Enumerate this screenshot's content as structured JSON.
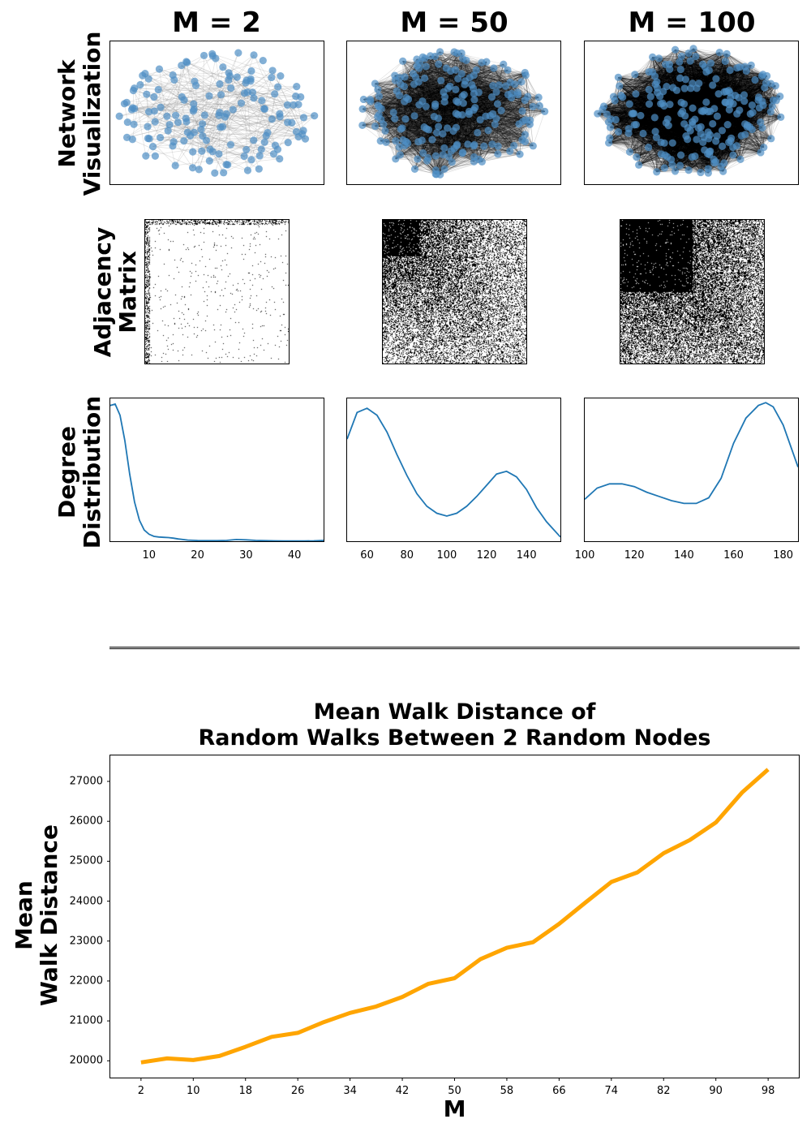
{
  "columns": {
    "titles": [
      "M = 2",
      "M = 50",
      "M = 100"
    ]
  },
  "rows": {
    "network": [
      "Network",
      "Visualization"
    ],
    "adjacency": [
      "Adjacency",
      "Matrix"
    ],
    "degree": [
      "Degree",
      "Distribution"
    ]
  },
  "colors": {
    "node": "#4f8fc4",
    "edge": "#888888",
    "curve": "#1f77b4",
    "walk_line": "#ffa500",
    "matrix_fill": "#000000"
  },
  "degree_panels": [
    {
      "ticks": [
        "10",
        "20",
        "30",
        "40"
      ],
      "xlim": [
        2,
        46
      ]
    },
    {
      "ticks": [
        "60",
        "80",
        "100",
        "120",
        "140"
      ],
      "xlim": [
        50,
        157
      ]
    },
    {
      "ticks": [
        "100",
        "120",
        "140",
        "160",
        "180"
      ],
      "xlim": [
        100,
        186
      ]
    }
  ],
  "chart_data": [
    {
      "type": "line",
      "title": "",
      "panel": "Degree Distribution, M = 2",
      "x": [
        2,
        3,
        4,
        5,
        6,
        7,
        8,
        9,
        10,
        11,
        12,
        13,
        14,
        15,
        16,
        18,
        20,
        22,
        24,
        26,
        28,
        30,
        32,
        34,
        36,
        38,
        40,
        42,
        44,
        46
      ],
      "y": [
        0.97,
        0.98,
        0.9,
        0.72,
        0.48,
        0.28,
        0.15,
        0.08,
        0.05,
        0.035,
        0.03,
        0.028,
        0.026,
        0.022,
        0.016,
        0.008,
        0.005,
        0.004,
        0.004,
        0.006,
        0.012,
        0.01,
        0.006,
        0.004,
        0.003,
        0.002,
        0.002,
        0.002,
        0.003,
        0.006
      ],
      "xlim": [
        2,
        46
      ],
      "ylim": [
        0,
        1
      ]
    },
    {
      "type": "line",
      "title": "",
      "panel": "Degree Distribution, M = 50",
      "x": [
        50,
        55,
        60,
        65,
        70,
        75,
        80,
        85,
        90,
        95,
        100,
        105,
        110,
        115,
        120,
        125,
        130,
        135,
        140,
        145,
        150,
        157
      ],
      "y": [
        0.73,
        0.92,
        0.95,
        0.9,
        0.78,
        0.62,
        0.47,
        0.34,
        0.25,
        0.2,
        0.18,
        0.2,
        0.25,
        0.32,
        0.4,
        0.48,
        0.5,
        0.46,
        0.37,
        0.24,
        0.14,
        0.03
      ],
      "xlim": [
        50,
        157
      ],
      "ylim": [
        0,
        1
      ]
    },
    {
      "type": "line",
      "title": "",
      "panel": "Degree Distribution, M = 100",
      "x": [
        100,
        105,
        110,
        115,
        120,
        125,
        130,
        135,
        140,
        145,
        150,
        155,
        160,
        165,
        170,
        173,
        176,
        180,
        186
      ],
      "y": [
        0.3,
        0.38,
        0.41,
        0.41,
        0.39,
        0.35,
        0.32,
        0.29,
        0.27,
        0.27,
        0.31,
        0.45,
        0.7,
        0.88,
        0.97,
        0.99,
        0.96,
        0.83,
        0.53
      ],
      "xlim": [
        100,
        186
      ],
      "ylim": [
        0,
        1
      ]
    },
    {
      "type": "line",
      "title": "Mean Walk Distance of\nRandom Walks Between 2 Random Nodes",
      "title_lines": [
        "Mean Walk Distance of",
        "Random Walks Between 2 Random Nodes"
      ],
      "xlabel": "M",
      "ylabel_lines": [
        "Mean",
        "Walk Distance"
      ],
      "x": [
        2,
        6,
        10,
        14,
        18,
        22,
        26,
        30,
        34,
        38,
        42,
        46,
        50,
        54,
        58,
        62,
        66,
        70,
        74,
        78,
        82,
        86,
        90,
        94,
        98
      ],
      "y": [
        19960,
        20060,
        20020,
        20120,
        20350,
        20600,
        20700,
        20970,
        21200,
        21360,
        21600,
        21930,
        22070,
        22550,
        22830,
        22970,
        23430,
        23960,
        24480,
        24720,
        25200,
        25530,
        25970,
        26720,
        27300
      ],
      "x_ticks": [
        "2",
        "10",
        "18",
        "26",
        "34",
        "42",
        "50",
        "58",
        "66",
        "74",
        "82",
        "90",
        "98"
      ],
      "y_ticks": [
        "20000",
        "21000",
        "22000",
        "23000",
        "24000",
        "25000",
        "26000",
        "27000"
      ],
      "xlim": [
        -2.7,
        102.7
      ],
      "ylim": [
        19580,
        27650
      ],
      "color": "#ffa500",
      "grid": false
    }
  ]
}
